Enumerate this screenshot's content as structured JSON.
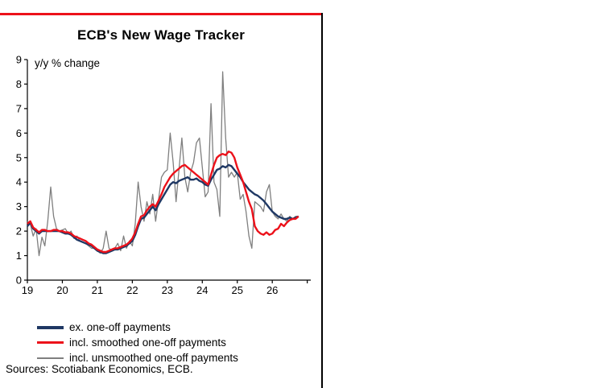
{
  "panel": {
    "accent_color": "#ec111a",
    "divider_color": "#000000"
  },
  "chart": {
    "title": "ECB's New Wage Tracker",
    "unit_label": "y/y % change",
    "sources": "Sources: Scotiabank Economics, ECB."
  },
  "legend": [
    {
      "label": "ex. one-off payments",
      "color": "#1f3864",
      "weight": 4
    },
    {
      "label": "incl. smoothed one-off payments",
      "color": "#ec111a",
      "weight": 3
    },
    {
      "label": "incl. unsmoothed one-off payments",
      "color": "#7f7f7f",
      "weight": 2
    }
  ],
  "chart_data": {
    "type": "line",
    "title": "ECB's New Wage Tracker",
    "xlabel": "",
    "ylabel": "y/y % change",
    "ylim": [
      0,
      9
    ],
    "y_ticks": [
      0,
      1,
      2,
      3,
      4,
      5,
      6,
      7,
      8,
      9
    ],
    "xlim": [
      2019,
      2027.1
    ],
    "x_ticks": [
      2019,
      2020,
      2021,
      2022,
      2023,
      2024,
      2025,
      2026,
      2027
    ],
    "x_tick_labels": [
      "19",
      "20",
      "21",
      "22",
      "23",
      "24",
      "25",
      "26",
      ""
    ],
    "x_start": 2019.0,
    "frequency": "monthly",
    "grid": false,
    "legend_position": "bottom-left",
    "draw_order": [
      2,
      0,
      1
    ],
    "series": [
      {
        "name": "ex. one-off payments",
        "color": "#1f3864",
        "width": 2.4,
        "values": [
          2.2,
          2.35,
          2.1,
          2.0,
          1.9,
          2.0,
          2.0,
          2.0,
          2.0,
          2.0,
          2.0,
          2.0,
          1.95,
          1.9,
          1.9,
          1.85,
          1.75,
          1.65,
          1.6,
          1.55,
          1.5,
          1.45,
          1.4,
          1.3,
          1.2,
          1.15,
          1.1,
          1.1,
          1.15,
          1.2,
          1.25,
          1.25,
          1.3,
          1.35,
          1.4,
          1.5,
          1.6,
          1.85,
          2.2,
          2.5,
          2.55,
          2.7,
          2.85,
          3.0,
          2.85,
          3.1,
          3.3,
          3.5,
          3.7,
          3.9,
          4.0,
          3.95,
          4.05,
          4.1,
          4.15,
          4.2,
          4.1,
          4.1,
          4.15,
          4.05,
          4.0,
          3.9,
          3.85,
          4.1,
          4.3,
          4.5,
          4.55,
          4.65,
          4.6,
          4.7,
          4.65,
          4.5,
          4.35,
          4.2,
          4.0,
          3.85,
          3.7,
          3.6,
          3.5,
          3.45,
          3.35,
          3.25,
          3.1,
          2.95,
          2.8,
          2.7,
          2.6,
          2.55,
          2.5,
          2.5,
          2.55,
          2.5,
          2.55,
          2.6
        ]
      },
      {
        "name": "incl. smoothed one-off payments",
        "color": "#ec111a",
        "width": 2.4,
        "values": [
          2.3,
          2.4,
          2.15,
          2.05,
          1.95,
          2.05,
          2.05,
          2.0,
          2.0,
          2.05,
          2.05,
          2.0,
          2.0,
          1.95,
          1.95,
          1.9,
          1.8,
          1.75,
          1.7,
          1.65,
          1.6,
          1.5,
          1.45,
          1.35,
          1.25,
          1.2,
          1.15,
          1.15,
          1.2,
          1.25,
          1.3,
          1.3,
          1.35,
          1.4,
          1.45,
          1.55,
          1.7,
          1.95,
          2.3,
          2.6,
          2.65,
          2.85,
          3.0,
          3.1,
          3.0,
          3.25,
          3.5,
          3.8,
          4.0,
          4.2,
          4.35,
          4.45,
          4.55,
          4.65,
          4.7,
          4.6,
          4.5,
          4.4,
          4.3,
          4.2,
          4.1,
          4.0,
          3.9,
          4.3,
          4.7,
          5.0,
          5.1,
          5.15,
          5.1,
          5.25,
          5.2,
          5.0,
          4.6,
          4.3,
          4.0,
          3.6,
          3.2,
          2.9,
          2.2,
          2.0,
          1.9,
          1.85,
          1.95,
          1.85,
          1.9,
          2.05,
          2.1,
          2.3,
          2.2,
          2.35,
          2.45,
          2.5,
          2.5,
          2.6
        ]
      },
      {
        "name": "incl. unsmoothed one-off payments",
        "color": "#7f7f7f",
        "width": 1.3,
        "values": [
          2.4,
          2.3,
          1.8,
          2.1,
          1.0,
          1.75,
          1.4,
          2.4,
          3.8,
          2.6,
          2.1,
          2.0,
          2.05,
          2.1,
          1.9,
          2.0,
          1.7,
          1.8,
          1.6,
          1.55,
          1.5,
          1.4,
          1.3,
          1.3,
          1.2,
          1.1,
          1.3,
          2.0,
          1.3,
          1.2,
          1.3,
          1.5,
          1.2,
          1.8,
          1.3,
          1.6,
          1.4,
          2.3,
          4.0,
          3.0,
          2.4,
          3.2,
          2.7,
          3.5,
          2.4,
          3.3,
          4.2,
          4.4,
          4.5,
          6.0,
          4.8,
          3.2,
          4.5,
          5.8,
          4.2,
          3.6,
          4.4,
          4.8,
          5.6,
          5.8,
          4.6,
          3.4,
          3.6,
          7.2,
          4.0,
          3.7,
          2.6,
          8.5,
          5.8,
          4.2,
          4.4,
          4.2,
          4.4,
          3.3,
          3.5,
          2.8,
          1.8,
          1.3,
          3.2,
          3.1,
          3.0,
          2.8,
          3.6,
          3.9,
          2.8,
          2.6,
          2.5,
          2.7,
          2.5,
          2.4,
          2.6,
          2.5,
          2.6,
          2.6
        ]
      }
    ]
  }
}
